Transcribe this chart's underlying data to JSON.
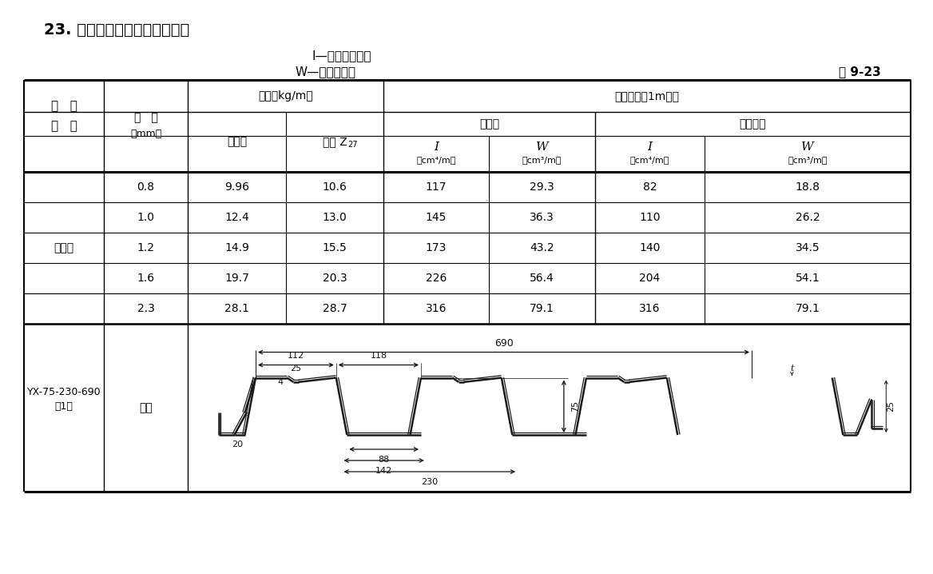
{
  "title": "23. 压型钢板规格及截面特性表",
  "subtitle1": "I—截面惯性矩；",
  "subtitle2": "W—截面模量。",
  "table_ref": "表 9-23",
  "h_xingHao": "型   号",
  "h_baoHou1": "板   厚",
  "h_baoHou2": "（mm）",
  "h_zhongLiang": "重量（kg/m）",
  "h_weiDuZin": "未镀锌",
  "h_duZin": "镀锌 Z",
  "h_duZin_sub": "27",
  "h_jmTX": "截面特性（1m宽）",
  "h_quanJM": "全截面",
  "h_youXiaoKD": "有效宽度",
  "h_I": "I",
  "h_W": "W",
  "h_I_unit": "（cm⁴/m）",
  "h_W_unit": "（cm³/m）",
  "h_teZhengZhi": "特征值",
  "label_YX": "YX-75-230-690",
  "label_1": "（1）",
  "label_banXing": "板型",
  "rows": [
    [
      "0.8",
      "9.96",
      "10.6",
      "117",
      "29.3",
      "82",
      "18.8"
    ],
    [
      "1.0",
      "12.4",
      "13.0",
      "145",
      "36.3",
      "110",
      "26.2"
    ],
    [
      "1.2",
      "14.9",
      "15.5",
      "173",
      "43.2",
      "140",
      "34.5"
    ],
    [
      "1.6",
      "19.7",
      "20.3",
      "226",
      "56.4",
      "204",
      "54.1"
    ],
    [
      "2.3",
      "28.1",
      "28.7",
      "316",
      "79.1",
      "316",
      "79.1"
    ]
  ],
  "dim_690": "690",
  "dim_112": "112",
  "dim_118": "118",
  "dim_25": "25",
  "dim_4": "4",
  "dim_75": "75",
  "dim_20": "20",
  "dim_88": "88",
  "dim_142": "142",
  "dim_230": "230",
  "dim_t": "t",
  "dim_25r": "25",
  "bg": "#ffffff",
  "lc": "#000000"
}
